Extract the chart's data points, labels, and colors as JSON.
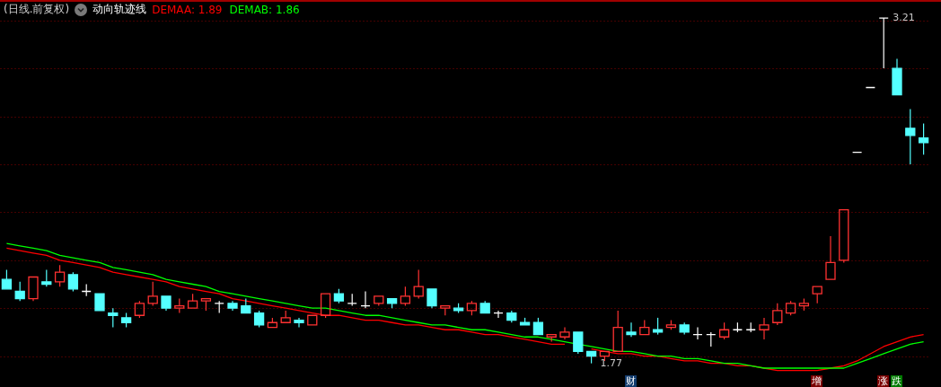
{
  "chart_data": {
    "type": "candlestick",
    "title": "(日线.前复权)",
    "subtitle": "动向轨迹线",
    "categories": [
      null,
      null,
      null,
      null,
      null,
      null,
      null,
      null,
      null,
      null,
      null,
      null,
      null,
      null,
      null,
      null,
      null,
      null,
      null,
      null,
      null,
      null,
      null,
      null,
      null,
      null,
      null,
      null,
      null,
      null,
      null,
      null,
      null,
      null,
      null,
      null,
      null,
      null,
      null,
      null,
      null,
      null,
      null,
      null,
      null,
      null,
      null,
      null,
      null,
      null,
      null,
      null,
      null,
      null,
      null,
      null,
      null,
      null,
      null,
      null,
      null,
      null,
      null,
      null,
      null,
      null,
      null,
      null,
      null,
      null
    ],
    "ohlc": [
      [
        2.12,
        2.16,
        2.08,
        2.08
      ],
      [
        2.07,
        2.11,
        2.03,
        2.04
      ],
      [
        2.04,
        2.13,
        2.03,
        2.13
      ],
      [
        2.11,
        2.16,
        2.09,
        2.1
      ],
      [
        2.11,
        2.18,
        2.09,
        2.15
      ],
      [
        2.14,
        2.15,
        2.07,
        2.08
      ],
      [
        2.07,
        2.1,
        2.05,
        2.07
      ],
      [
        2.06,
        2.06,
        1.99,
        1.99
      ],
      [
        1.98,
        2.0,
        1.92,
        1.97
      ],
      [
        1.96,
        1.98,
        1.92,
        1.94
      ],
      [
        1.97,
        2.03,
        1.96,
        2.02
      ],
      [
        2.02,
        2.11,
        2.01,
        2.05
      ],
      [
        2.05,
        2.05,
        1.99,
        2.0
      ],
      [
        2.0,
        2.04,
        1.98,
        2.01
      ],
      [
        2.0,
        2.06,
        2.0,
        2.03
      ],
      [
        2.03,
        2.04,
        1.99,
        2.04
      ],
      [
        2.02,
        2.03,
        1.98,
        2.02
      ],
      [
        2.02,
        2.03,
        1.99,
        2.0
      ],
      [
        2.01,
        2.04,
        1.98,
        1.98
      ],
      [
        1.98,
        1.99,
        1.92,
        1.93
      ],
      [
        1.92,
        1.96,
        1.92,
        1.94
      ],
      [
        1.94,
        1.99,
        1.94,
        1.96
      ],
      [
        1.95,
        1.96,
        1.92,
        1.94
      ],
      [
        1.93,
        1.97,
        1.93,
        1.97
      ],
      [
        1.97,
        2.06,
        1.96,
        2.06
      ],
      [
        2.06,
        2.08,
        2.02,
        2.03
      ],
      [
        2.02,
        2.06,
        2.01,
        2.02
      ],
      [
        2.01,
        2.07,
        2.0,
        2.01
      ],
      [
        2.02,
        2.05,
        2.01,
        2.05
      ],
      [
        2.04,
        2.04,
        2.0,
        2.02
      ],
      [
        2.02,
        2.09,
        2.01,
        2.05
      ],
      [
        2.05,
        2.16,
        2.04,
        2.09
      ],
      [
        2.08,
        2.08,
        2.0,
        2.01
      ],
      [
        2.0,
        2.01,
        1.97,
        2.01
      ],
      [
        2.0,
        2.02,
        1.98,
        1.99
      ],
      [
        1.99,
        2.03,
        1.97,
        2.02
      ],
      [
        2.02,
        2.03,
        1.98,
        1.98
      ],
      [
        1.98,
        1.99,
        1.96,
        1.98
      ],
      [
        1.98,
        1.99,
        1.94,
        1.95
      ],
      [
        1.94,
        1.96,
        1.93,
        1.93
      ],
      [
        1.94,
        1.96,
        1.89,
        1.89
      ],
      [
        1.88,
        1.89,
        1.86,
        1.89
      ],
      [
        1.88,
        1.92,
        1.87,
        1.9
      ],
      [
        1.9,
        1.9,
        1.81,
        1.82
      ],
      [
        1.82,
        1.82,
        1.77,
        1.8
      ],
      [
        1.8,
        1.82,
        1.78,
        1.82
      ],
      [
        1.82,
        1.99,
        1.82,
        1.92
      ],
      [
        1.9,
        1.94,
        1.88,
        1.89
      ],
      [
        1.89,
        1.95,
        1.89,
        1.92
      ],
      [
        1.91,
        1.96,
        1.89,
        1.9
      ],
      [
        1.92,
        1.95,
        1.91,
        1.93
      ],
      [
        1.93,
        1.94,
        1.89,
        1.9
      ],
      [
        1.89,
        1.92,
        1.87,
        1.89
      ],
      [
        1.89,
        1.9,
        1.84,
        1.89
      ],
      [
        1.88,
        1.94,
        1.87,
        1.91
      ],
      [
        1.91,
        1.94,
        1.9,
        1.91
      ],
      [
        1.91,
        1.94,
        1.9,
        1.91
      ],
      [
        1.91,
        1.96,
        1.87,
        1.93
      ],
      [
        1.94,
        2.02,
        1.93,
        1.99
      ],
      [
        1.98,
        2.03,
        1.97,
        2.02
      ],
      [
        2.01,
        2.04,
        1.99,
        2.02
      ],
      [
        2.06,
        2.09,
        2.02,
        2.09
      ],
      [
        2.12,
        2.3,
        2.12,
        2.19
      ],
      [
        2.2,
        2.41,
        2.19,
        2.41
      ],
      [
        2.65,
        2.65,
        2.65,
        2.65
      ],
      [
        2.92,
        2.92,
        2.92,
        2.92
      ],
      [
        3.21,
        3.21,
        3.0,
        3.21
      ],
      [
        3.0,
        3.04,
        2.89,
        2.89
      ],
      [
        2.75,
        2.83,
        2.6,
        2.72
      ],
      [
        2.71,
        2.77,
        2.64,
        2.69
      ]
    ],
    "colors": [
      "#54ffff",
      "#54ffff",
      "#ff3232",
      "#54ffff",
      "#ff3232",
      "#54ffff",
      "#ffffff",
      "#54ffff",
      "#54ffff",
      "#54ffff",
      "#ff3232",
      "#ff3232",
      "#54ffff",
      "#ff3232",
      "#ff3232",
      "#ff3232",
      "#ffffff",
      "#54ffff",
      "#54ffff",
      "#54ffff",
      "#ff3232",
      "#ff3232",
      "#54ffff",
      "#ff3232",
      "#ff3232",
      "#54ffff",
      "#ffffff",
      "#ffffff",
      "#ff3232",
      "#54ffff",
      "#ff3232",
      "#ff3232",
      "#54ffff",
      "#ff3232",
      "#54ffff",
      "#ff3232",
      "#54ffff",
      "#ffffff",
      "#54ffff",
      "#54ffff",
      "#54ffff",
      "#ff3232",
      "#ff3232",
      "#54ffff",
      "#54ffff",
      "#ff3232",
      "#ff3232",
      "#54ffff",
      "#ff3232",
      "#54ffff",
      "#ff3232",
      "#54ffff",
      "#ffffff",
      "#ffffff",
      "#ff3232",
      "#ffffff",
      "#ffffff",
      "#ff3232",
      "#ff3232",
      "#ff3232",
      "#ff3232",
      "#ff3232",
      "#ff3232",
      "#ff3232",
      "#ffffff",
      "#ffffff",
      "#ffffff",
      "#54ffff",
      "#54ffff",
      "#54ffff"
    ],
    "series": [
      {
        "name": "DEMAA: 1.89",
        "type": "line",
        "color": "#ff0000",
        "values": [
          2.25,
          2.24,
          2.23,
          2.22,
          2.2,
          2.19,
          2.18,
          2.17,
          2.15,
          2.14,
          2.13,
          2.12,
          2.11,
          2.09,
          2.08,
          2.07,
          2.06,
          2.04,
          2.03,
          2.02,
          2.01,
          2.0,
          1.99,
          1.98,
          1.97,
          1.97,
          1.96,
          1.95,
          1.95,
          1.94,
          1.93,
          1.93,
          1.92,
          1.91,
          1.91,
          1.9,
          1.89,
          1.89,
          1.88,
          1.87,
          1.86,
          1.85,
          1.85,
          null,
          1.83,
          1.82,
          1.81,
          1.81,
          1.8,
          1.8,
          1.79,
          1.78,
          1.78,
          1.77,
          1.77,
          1.76,
          1.76,
          1.75,
          1.74,
          1.74,
          1.74,
          1.74,
          1.75,
          1.76,
          1.78,
          1.81,
          1.84,
          1.86,
          1.88,
          1.89
        ]
      },
      {
        "name": "DEMAB: 1.86",
        "type": "line",
        "color": "#00ff00",
        "values": [
          2.27,
          2.26,
          2.25,
          2.24,
          2.22,
          2.21,
          2.2,
          2.19,
          2.17,
          2.16,
          2.15,
          2.14,
          2.12,
          2.11,
          2.1,
          2.09,
          2.07,
          2.06,
          2.05,
          2.04,
          2.03,
          2.02,
          2.01,
          2.0,
          2.0,
          1.99,
          1.98,
          1.97,
          1.97,
          1.96,
          1.95,
          1.94,
          1.93,
          1.93,
          1.92,
          1.91,
          1.91,
          1.9,
          1.89,
          1.88,
          1.88,
          1.87,
          1.86,
          1.85,
          1.84,
          1.83,
          1.82,
          1.82,
          1.81,
          1.8,
          1.8,
          1.79,
          1.79,
          1.78,
          1.77,
          1.77,
          1.76,
          1.75,
          1.75,
          1.75,
          1.75,
          1.75,
          1.75,
          1.75,
          1.77,
          1.79,
          1.81,
          1.83,
          1.85,
          1.86
        ]
      }
    ],
    "ylim": [
      1.72,
      3.27
    ],
    "yticks": [
      {
        "value": 1.8,
        "label": null
      },
      {
        "value": 2.0,
        "label": null
      },
      {
        "value": 2.2,
        "label": null
      },
      {
        "value": 2.4,
        "label": null
      },
      {
        "value": 2.6,
        "label": null
      },
      {
        "value": 2.8,
        "label": null
      },
      {
        "value": 3.0,
        "label": null
      },
      {
        "value": 3.2,
        "label": null
      }
    ],
    "grid": "y",
    "legend": "top left",
    "annotations": [
      "3.21",
      "1.77",
      "财",
      "增",
      "涨",
      "跌"
    ]
  }
}
